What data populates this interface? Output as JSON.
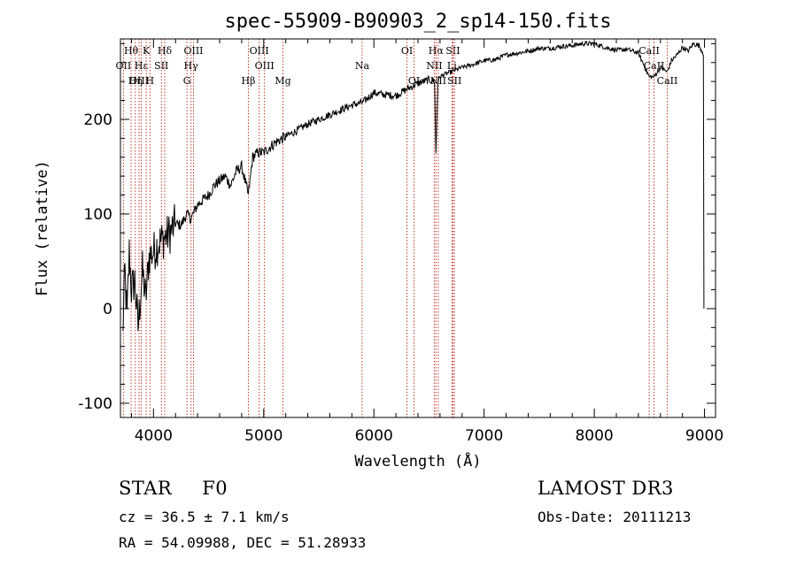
{
  "chart_data": {
    "type": "line",
    "title": "spec-55909-B90903_2_sp14-150.fits",
    "xlabel": "Wavelength (Å)",
    "ylabel": "Flux (relative)",
    "xlim": [
      3700,
      9100
    ],
    "ylim": [
      -115,
      285
    ],
    "xticks": [
      4000,
      5000,
      6000,
      7000,
      8000,
      9000
    ],
    "yticks": [
      -100,
      0,
      100,
      200
    ],
    "series": [
      {
        "name": "flux",
        "x": [
          3720,
          3740,
          3760,
          3780,
          3800,
          3830,
          3860,
          3900,
          3930,
          3960,
          4000,
          4050,
          4100,
          4150,
          4200,
          4250,
          4300,
          4340,
          4400,
          4450,
          4500,
          4550,
          4600,
          4650,
          4700,
          4750,
          4800,
          4861,
          4900,
          4950,
          5000,
          5100,
          5200,
          5300,
          5400,
          5500,
          5600,
          5700,
          5800,
          5900,
          6000,
          6100,
          6200,
          6300,
          6400,
          6500,
          6550,
          6563,
          6580,
          6600,
          6650,
          6700,
          6800,
          6900,
          7000,
          7100,
          7200,
          7300,
          7400,
          7500,
          7600,
          7700,
          7800,
          7900,
          8000,
          8100,
          8200,
          8300,
          8400,
          8498,
          8542,
          8600,
          8662,
          8700,
          8750,
          8800,
          8850,
          8900,
          8950,
          8990,
          8995
        ],
        "values": [
          -30,
          40,
          -10,
          60,
          20,
          30,
          -20,
          40,
          10,
          55,
          60,
          70,
          75,
          80,
          90,
          88,
          100,
          95,
          110,
          115,
          120,
          130,
          135,
          140,
          130,
          145,
          150,
          120,
          160,
          165,
          165,
          175,
          182,
          188,
          195,
          200,
          205,
          210,
          215,
          218,
          228,
          226,
          225,
          232,
          238,
          242,
          240,
          165,
          238,
          245,
          248,
          250,
          255,
          258,
          262,
          263,
          268,
          270,
          272,
          275,
          275,
          277,
          278,
          280,
          280,
          276,
          273,
          274,
          270,
          245,
          245,
          255,
          250,
          262,
          268,
          276,
          272,
          280,
          278,
          270,
          0
        ]
      }
    ],
    "spectral_lines": [
      {
        "label": "Hθ",
        "wl": 3797,
        "row": 1
      },
      {
        "label": "OII",
        "wl": 3727,
        "row": 2
      },
      {
        "label": "OIII",
        "wl": 3869,
        "row": 3
      },
      {
        "label": "Hε",
        "wl": 3889,
        "row": 2
      },
      {
        "label": "Hη",
        "wl": 3835,
        "row": 3
      },
      {
        "label": "K",
        "wl": 3934,
        "row": 1
      },
      {
        "label": "H",
        "wl": 3968,
        "row": 3
      },
      {
        "label": "SII",
        "wl": 4072,
        "row": 2
      },
      {
        "label": "Hδ",
        "wl": 4102,
        "row": 1
      },
      {
        "label": "OIII",
        "wl": 4363,
        "row": 1
      },
      {
        "label": "Hγ",
        "wl": 4340,
        "row": 2
      },
      {
        "label": "G",
        "wl": 4304,
        "row": 3
      },
      {
        "label": "Hβ",
        "wl": 4861,
        "row": 3
      },
      {
        "label": "OIII",
        "wl": 4959,
        "row": 1
      },
      {
        "label": "OIII",
        "wl": 5007,
        "row": 2
      },
      {
        "label": "Mg",
        "wl": 5175,
        "row": 3
      },
      {
        "label": "Na",
        "wl": 5893,
        "row": 2
      },
      {
        "label": "OI",
        "wl": 6300,
        "row": 1
      },
      {
        "label": "OI",
        "wl": 6364,
        "row": 3
      },
      {
        "label": "Hα",
        "wl": 6563,
        "row": 1
      },
      {
        "label": "NII",
        "wl": 6548,
        "row": 2
      },
      {
        "label": "NII",
        "wl": 6584,
        "row": 3
      },
      {
        "label": "SII",
        "wl": 6717,
        "row": 1
      },
      {
        "label": "Li",
        "wl": 6708,
        "row": 2
      },
      {
        "label": "SII",
        "wl": 6731,
        "row": 3
      },
      {
        "label": "CaII",
        "wl": 8498,
        "row": 1
      },
      {
        "label": "CaII",
        "wl": 8542,
        "row": 2
      },
      {
        "label": "CaII",
        "wl": 8662,
        "row": 3
      }
    ]
  },
  "info": {
    "class": "STAR",
    "subclass": "F0",
    "survey": "LAMOST DR3",
    "cz": "cz = 36.5 ± 7.1 km/s",
    "obs_date": "Obs-Date: 20111213",
    "radec": "RA =  54.09988, DEC =  51.28933"
  }
}
